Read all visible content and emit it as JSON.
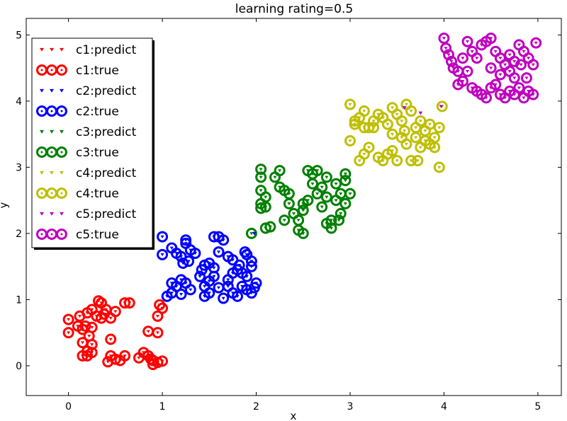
{
  "chart_data": {
    "type": "scatter",
    "title": "learning rating=0.5",
    "xlabel": "x",
    "ylabel": "y",
    "xlim": [
      -0.45,
      5.25
    ],
    "ylim": [
      -0.45,
      5.25
    ],
    "xticks": [
      "0",
      "1",
      "2",
      "3",
      "4",
      "5"
    ],
    "yticks": [
      "0",
      "1",
      "2",
      "3",
      "4",
      "5"
    ],
    "xtick_values": [
      0,
      1,
      2,
      3,
      4,
      5
    ],
    "ytick_values": [
      0,
      1,
      2,
      3,
      4,
      5
    ],
    "grid": false,
    "legend_position": "top-left",
    "legend": [
      {
        "label": "c1:predict",
        "marker": "triangle-down",
        "color": "#ff0000"
      },
      {
        "label": "c1:true",
        "marker": "circle-open",
        "color": "#ff0000"
      },
      {
        "label": "c2:predict",
        "marker": "triangle-down",
        "color": "#0000ff"
      },
      {
        "label": "c2:true",
        "marker": "circle-open",
        "color": "#0000ff"
      },
      {
        "label": "c3:predict",
        "marker": "triangle-down",
        "color": "#008000"
      },
      {
        "label": "c3:true",
        "marker": "circle-open",
        "color": "#008000"
      },
      {
        "label": "c4:predict",
        "marker": "triangle-down",
        "color": "#bfbf00"
      },
      {
        "label": "c4:true",
        "marker": "circle-open",
        "color": "#bfbf00"
      },
      {
        "label": "c5:predict",
        "marker": "triangle-down",
        "color": "#bf00bf"
      },
      {
        "label": "c5:true",
        "marker": "circle-open",
        "color": "#bf00bf"
      }
    ],
    "series": [
      {
        "name": "c1",
        "color": "#ff0000",
        "points": [
          [
            0.0,
            0.7
          ],
          [
            0.0,
            0.5
          ],
          [
            0.12,
            0.75
          ],
          [
            0.15,
            0.55
          ],
          [
            0.2,
            0.8
          ],
          [
            0.25,
            0.85
          ],
          [
            0.3,
            0.75
          ],
          [
            0.32,
            0.98
          ],
          [
            0.35,
            0.72
          ],
          [
            0.4,
            0.85
          ],
          [
            0.1,
            0.6
          ],
          [
            0.18,
            0.6
          ],
          [
            0.22,
            0.45
          ],
          [
            0.15,
            0.35
          ],
          [
            0.25,
            0.32
          ],
          [
            0.2,
            0.22
          ],
          [
            0.25,
            0.2
          ],
          [
            0.15,
            0.15
          ],
          [
            0.2,
            0.15
          ],
          [
            0.35,
            0.95
          ],
          [
            0.38,
            0.78
          ],
          [
            0.45,
            0.72
          ],
          [
            0.5,
            0.82
          ],
          [
            0.25,
            0.58
          ],
          [
            0.45,
            0.4
          ],
          [
            0.45,
            0.15
          ],
          [
            0.5,
            0.1
          ],
          [
            0.42,
            0.06
          ],
          [
            0.55,
            0.08
          ],
          [
            0.6,
            0.15
          ],
          [
            0.65,
            0.95
          ],
          [
            0.6,
            0.95
          ],
          [
            0.75,
            0.12
          ],
          [
            0.8,
            0.2
          ],
          [
            0.85,
            0.15
          ],
          [
            0.9,
            0.08
          ],
          [
            0.9,
            0.02
          ],
          [
            0.95,
            0.05
          ],
          [
            1.0,
            0.07
          ],
          [
            0.85,
            0.52
          ],
          [
            0.95,
            0.5
          ],
          [
            0.95,
            0.75
          ],
          [
            0.97,
            0.92
          ],
          [
            1.0,
            0.87
          ],
          [
            0.88,
            0.1
          ]
        ]
      },
      {
        "name": "c2",
        "color": "#0000ff",
        "points": [
          [
            1.0,
            1.95
          ],
          [
            1.0,
            1.68
          ],
          [
            1.1,
            1.78
          ],
          [
            1.15,
            1.7
          ],
          [
            1.2,
            1.65
          ],
          [
            1.25,
            1.9
          ],
          [
            1.25,
            1.85
          ],
          [
            1.3,
            1.75
          ],
          [
            1.35,
            1.7
          ],
          [
            1.22,
            1.55
          ],
          [
            1.28,
            1.58
          ],
          [
            1.1,
            1.25
          ],
          [
            1.15,
            1.2
          ],
          [
            1.2,
            1.3
          ],
          [
            1.25,
            1.25
          ],
          [
            1.3,
            1.15
          ],
          [
            1.05,
            1.05
          ],
          [
            1.1,
            1.1
          ],
          [
            1.2,
            1.08
          ],
          [
            1.42,
            1.45
          ],
          [
            1.45,
            1.52
          ],
          [
            1.5,
            1.55
          ],
          [
            1.55,
            1.48
          ],
          [
            1.6,
            1.72
          ],
          [
            1.6,
            1.95
          ],
          [
            1.65,
            1.9
          ],
          [
            1.55,
            1.95
          ],
          [
            1.7,
            1.65
          ],
          [
            1.75,
            1.6
          ],
          [
            1.8,
            1.45
          ],
          [
            1.85,
            1.4
          ],
          [
            1.9,
            1.35
          ],
          [
            1.95,
            1.5
          ],
          [
            1.9,
            1.68
          ],
          [
            1.88,
            1.72
          ],
          [
            1.95,
            1.58
          ],
          [
            1.4,
            1.35
          ],
          [
            1.45,
            1.2
          ],
          [
            1.45,
            1.05
          ],
          [
            1.5,
            1.1
          ],
          [
            1.5,
            1.28
          ],
          [
            1.6,
            1.18
          ],
          [
            1.65,
            1.02
          ],
          [
            1.7,
            1.3
          ],
          [
            1.75,
            1.1
          ],
          [
            1.8,
            1.05
          ],
          [
            1.85,
            1.2
          ],
          [
            1.9,
            1.15
          ],
          [
            1.95,
            1.1
          ],
          [
            2.0,
            1.25
          ],
          [
            1.75,
            1.4
          ],
          [
            1.82,
            1.52
          ],
          [
            1.7,
            1.2
          ],
          [
            1.55,
            1.35
          ],
          [
            1.98,
            1.18
          ]
        ]
      },
      {
        "name": "c3",
        "color": "#008000",
        "points": [
          [
            1.95,
            2.0
          ],
          [
            2.05,
            2.45
          ],
          [
            2.05,
            2.65
          ],
          [
            2.05,
            2.85
          ],
          [
            2.1,
            2.4
          ],
          [
            2.1,
            2.55
          ],
          [
            2.15,
            2.1
          ],
          [
            2.2,
            2.85
          ],
          [
            2.25,
            2.95
          ],
          [
            2.25,
            2.7
          ],
          [
            2.05,
            2.97
          ],
          [
            2.1,
            2.08
          ],
          [
            2.05,
            2.38
          ],
          [
            2.3,
            2.2
          ],
          [
            2.3,
            2.65
          ],
          [
            2.35,
            2.6
          ],
          [
            2.35,
            2.45
          ],
          [
            2.4,
            2.3
          ],
          [
            2.45,
            2.2
          ],
          [
            2.5,
            2.35
          ],
          [
            2.5,
            2.45
          ],
          [
            2.55,
            2.5
          ],
          [
            2.45,
            2.05
          ],
          [
            2.5,
            2.0
          ],
          [
            2.55,
            2.95
          ],
          [
            2.6,
            2.9
          ],
          [
            2.6,
            2.75
          ],
          [
            2.65,
            2.95
          ],
          [
            2.65,
            2.6
          ],
          [
            2.7,
            2.7
          ],
          [
            2.7,
            2.4
          ],
          [
            2.75,
            2.55
          ],
          [
            2.75,
            2.85
          ],
          [
            2.8,
            2.2
          ],
          [
            2.85,
            2.5
          ],
          [
            2.85,
            2.75
          ],
          [
            2.9,
            2.6
          ],
          [
            2.9,
            2.3
          ],
          [
            2.95,
            2.45
          ],
          [
            2.95,
            2.8
          ],
          [
            2.95,
            2.9
          ],
          [
            3.0,
            2.6
          ],
          [
            2.88,
            2.2
          ],
          [
            2.75,
            2.15
          ],
          [
            2.8,
            2.08
          ]
        ]
      },
      {
        "name": "c4",
        "color": "#bfbf00",
        "points": [
          [
            3.0,
            3.95
          ],
          [
            3.05,
            3.65
          ],
          [
            3.1,
            3.75
          ],
          [
            3.15,
            3.85
          ],
          [
            3.2,
            3.6
          ],
          [
            3.25,
            3.7
          ],
          [
            3.3,
            3.8
          ],
          [
            3.35,
            3.75
          ],
          [
            3.4,
            3.65
          ],
          [
            3.45,
            3.9
          ],
          [
            3.5,
            3.8
          ],
          [
            3.55,
            3.7
          ],
          [
            3.6,
            3.95
          ],
          [
            3.65,
            3.85
          ],
          [
            3.7,
            3.6
          ],
          [
            3.75,
            3.7
          ],
          [
            3.8,
            3.55
          ],
          [
            3.85,
            3.65
          ],
          [
            3.9,
            3.45
          ],
          [
            3.95,
            3.6
          ],
          [
            3.0,
            3.4
          ],
          [
            3.1,
            3.1
          ],
          [
            3.15,
            3.2
          ],
          [
            3.2,
            3.3
          ],
          [
            3.3,
            3.15
          ],
          [
            3.35,
            3.1
          ],
          [
            3.4,
            3.2
          ],
          [
            3.45,
            3.25
          ],
          [
            3.5,
            3.1
          ],
          [
            3.55,
            3.45
          ],
          [
            3.6,
            3.35
          ],
          [
            3.65,
            3.1
          ],
          [
            3.7,
            3.45
          ],
          [
            3.75,
            3.3
          ],
          [
            3.8,
            3.4
          ],
          [
            3.85,
            3.35
          ],
          [
            3.9,
            3.3
          ],
          [
            3.95,
            3.0
          ],
          [
            3.05,
            3.7
          ],
          [
            3.25,
            3.6
          ],
          [
            3.58,
            3.55
          ],
          [
            3.72,
            3.1
          ],
          [
            3.98,
            3.92
          ],
          [
            3.15,
            3.6
          ],
          [
            3.45,
            3.5
          ]
        ]
      },
      {
        "name": "c5",
        "color": "#bf00bf",
        "points": [
          [
            4.0,
            4.95
          ],
          [
            4.02,
            4.8
          ],
          [
            4.05,
            4.7
          ],
          [
            4.08,
            4.6
          ],
          [
            4.1,
            4.5
          ],
          [
            4.15,
            4.45
          ],
          [
            4.2,
            4.65
          ],
          [
            4.25,
            4.9
          ],
          [
            4.3,
            4.75
          ],
          [
            4.35,
            4.65
          ],
          [
            4.4,
            4.85
          ],
          [
            4.45,
            4.9
          ],
          [
            4.5,
            4.95
          ],
          [
            4.55,
            4.75
          ],
          [
            4.6,
            4.65
          ],
          [
            4.65,
            4.55
          ],
          [
            4.7,
            4.45
          ],
          [
            4.75,
            4.35
          ],
          [
            4.8,
            4.85
          ],
          [
            4.85,
            4.75
          ],
          [
            4.9,
            4.65
          ],
          [
            4.95,
            4.55
          ],
          [
            4.98,
            4.88
          ],
          [
            4.2,
            4.3
          ],
          [
            4.3,
            4.2
          ],
          [
            4.35,
            4.15
          ],
          [
            4.4,
            4.1
          ],
          [
            4.45,
            4.05
          ],
          [
            4.5,
            4.2
          ],
          [
            4.55,
            4.25
          ],
          [
            4.6,
            4.1
          ],
          [
            4.65,
            4.05
          ],
          [
            4.7,
            4.15
          ],
          [
            4.75,
            4.1
          ],
          [
            4.8,
            4.2
          ],
          [
            4.85,
            4.05
          ],
          [
            4.9,
            4.15
          ],
          [
            4.95,
            4.1
          ],
          [
            4.25,
            4.45
          ],
          [
            4.5,
            4.5
          ],
          [
            4.7,
            4.7
          ],
          [
            4.82,
            4.55
          ],
          [
            4.88,
            4.35
          ],
          [
            4.15,
            4.25
          ],
          [
            4.6,
            4.4
          ],
          [
            4.75,
            4.6
          ]
        ]
      }
    ],
    "predict_outliers": [
      {
        "series": "c5",
        "x": 3.58,
        "y": 3.9
      },
      {
        "series": "c5",
        "x": 3.75,
        "y": 3.82
      },
      {
        "series": "c5",
        "x": 3.97,
        "y": 3.92
      },
      {
        "series": "c2",
        "x": 1.98,
        "y": 2.0
      }
    ]
  }
}
